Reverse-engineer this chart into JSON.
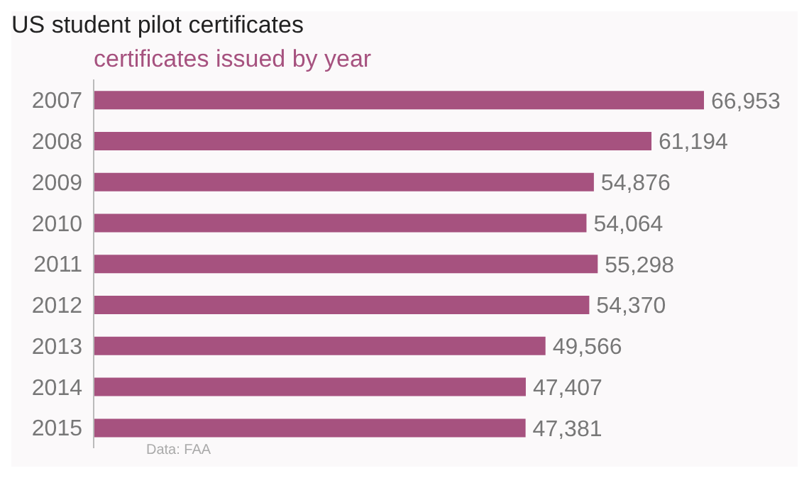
{
  "chart_data": {
    "type": "bar",
    "orientation": "horizontal",
    "title": "US student pilot certificates",
    "subtitle": "certificates issued by year",
    "categories": [
      "2007",
      "2008",
      "2009",
      "2010",
      "2011",
      "2012",
      "2013",
      "2014",
      "2015"
    ],
    "values": [
      66953,
      61194,
      54876,
      54064,
      55298,
      54370,
      49566,
      47407,
      47381
    ],
    "value_labels": [
      "66,953",
      "61,194",
      "54,876",
      "54,064",
      "55,298",
      "54,370",
      "49,566",
      "47,407",
      "47,381"
    ],
    "color": "#a6527f",
    "annotations": [
      "Data: FAA"
    ]
  }
}
